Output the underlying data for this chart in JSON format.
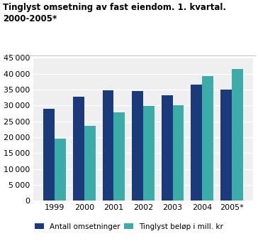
{
  "title_line1": "Tinglyst omsetning av fast eiendom. 1. kvartal.",
  "title_line2": "2000-2005*",
  "years": [
    "1999",
    "2000",
    "2001",
    "2002",
    "2003",
    "2004",
    "2005*"
  ],
  "antall_omsetninger": [
    29000,
    32700,
    34700,
    34500,
    33300,
    36500,
    35000
  ],
  "tinglyst_belop": [
    19500,
    23500,
    27800,
    29800,
    30000,
    39300,
    41500
  ],
  "color_antall": "#1a3a7c",
  "color_belop": "#3aada8",
  "ylim": [
    0,
    45000
  ],
  "yticks": [
    0,
    5000,
    10000,
    15000,
    20000,
    25000,
    30000,
    35000,
    40000,
    45000
  ],
  "legend_antall": "Antall omsetninger",
  "legend_belop": "Tinglyst beløp i mill. kr",
  "background_color": "#ffffff",
  "plot_bg_color": "#efefef",
  "grid_color": "#ffffff",
  "bar_width": 0.38
}
